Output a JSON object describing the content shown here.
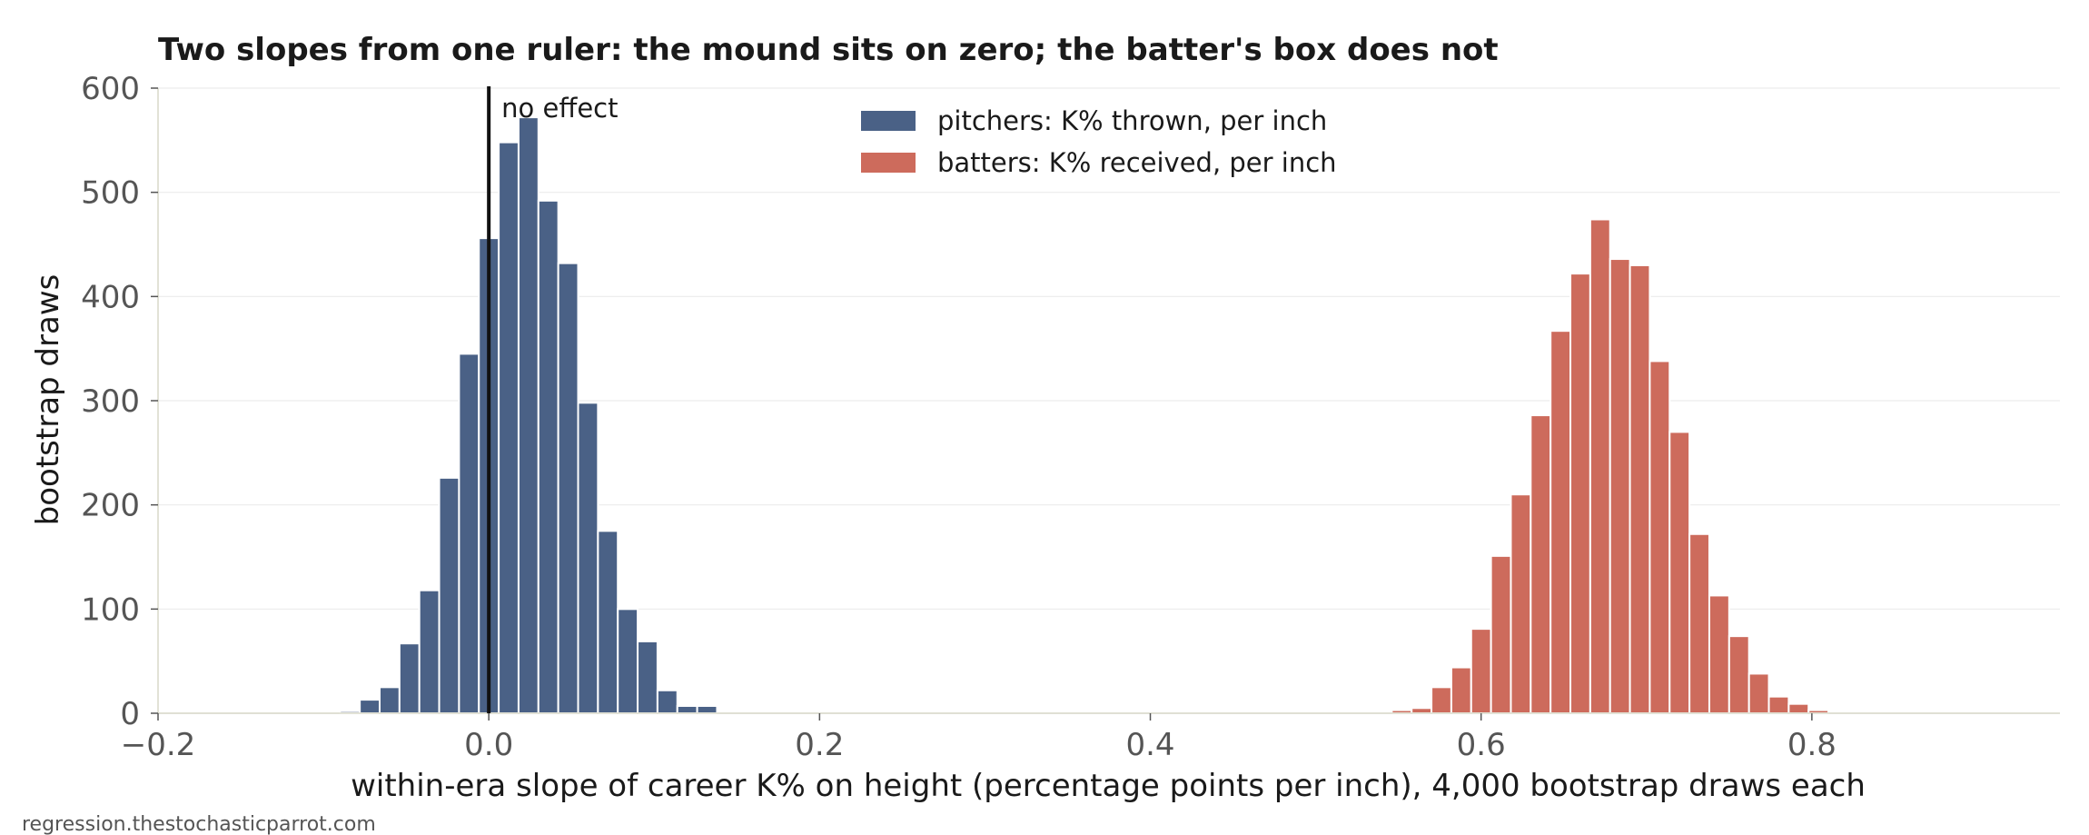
{
  "chart_data": {
    "type": "bar",
    "title": "Two slopes from one ruler: the mound sits on zero; the batter's box does not",
    "xlabel": "within-era slope of career K% on height (percentage points per inch), 4,000 bootstrap draws each",
    "ylabel": "bootstrap draws",
    "xlim": [
      -0.2,
      0.95
    ],
    "ylim": [
      0,
      600
    ],
    "x_ticks": [
      -0.2,
      0.0,
      0.2,
      0.4,
      0.6,
      0.8
    ],
    "x_tick_labels": [
      "−0.2",
      "0.0",
      "0.2",
      "0.4",
      "0.6",
      "0.8"
    ],
    "y_ticks": [
      0,
      100,
      200,
      300,
      400,
      500,
      600
    ],
    "y_tick_labels": [
      "0",
      "100",
      "200",
      "300",
      "400",
      "500",
      "600"
    ],
    "bin_width": 0.012,
    "grid": "horizontal",
    "legend_position": "top-center",
    "series": [
      {
        "name": "pitchers: K% thrown, per inch",
        "color": "#4a6186",
        "bin_starts": [
          -0.09,
          -0.078,
          -0.066,
          -0.054,
          -0.042,
          -0.03,
          -0.018,
          -0.006,
          0.006,
          0.018,
          0.03,
          0.042,
          0.054,
          0.066,
          0.078,
          0.09,
          0.102,
          0.114,
          0.126
        ],
        "values": [
          2,
          13,
          25,
          67,
          118,
          226,
          345,
          456,
          548,
          572,
          492,
          432,
          298,
          175,
          100,
          69,
          22,
          7,
          7
        ]
      },
      {
        "name": "batters: K% received, per inch",
        "color": "#cd6b5c",
        "bin_starts": [
          0.546,
          0.558,
          0.57,
          0.582,
          0.594,
          0.606,
          0.618,
          0.63,
          0.642,
          0.654,
          0.666,
          0.678,
          0.69,
          0.702,
          0.714,
          0.726,
          0.738,
          0.75,
          0.762,
          0.774,
          0.786,
          0.798
        ],
        "values": [
          3,
          5,
          25,
          44,
          81,
          151,
          210,
          286,
          367,
          422,
          474,
          436,
          430,
          338,
          270,
          172,
          113,
          74,
          38,
          16,
          9,
          3
        ]
      }
    ],
    "annotations": [
      {
        "text": "no effect",
        "x": 0.0
      }
    ]
  },
  "footer": {
    "source": "regression.thestochasticparrot.com"
  }
}
